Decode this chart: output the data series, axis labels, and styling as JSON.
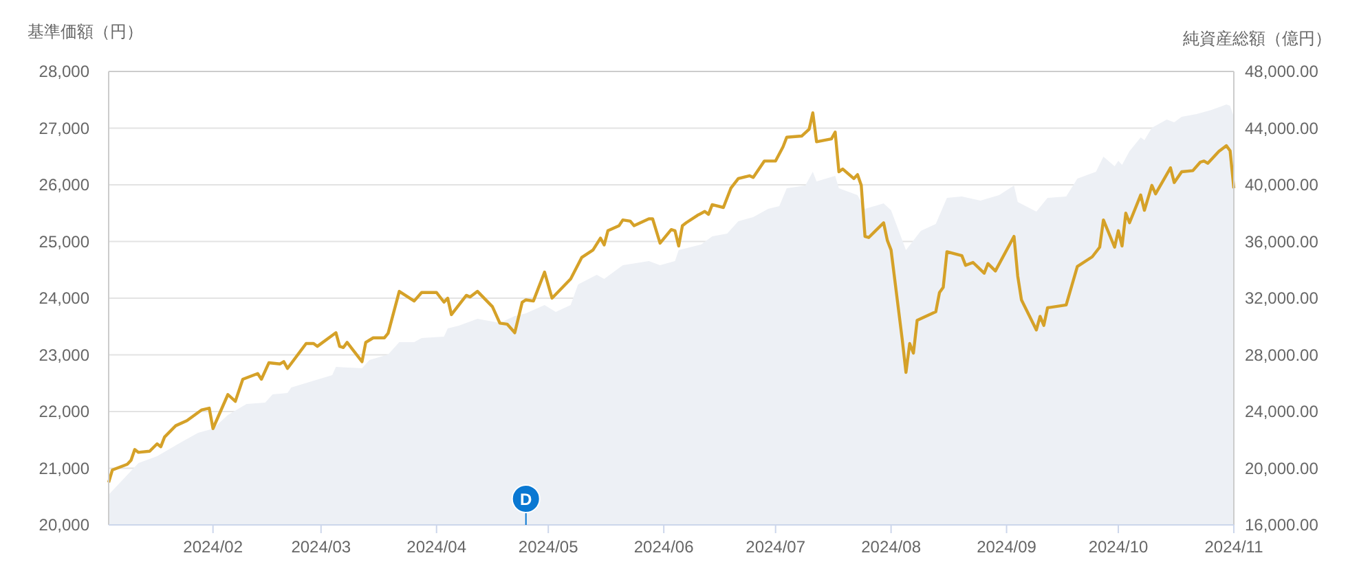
{
  "chart_data": {
    "type": "line",
    "ylabel": "基準価額（円）",
    "y2label": "純資産総額（億円）",
    "xlim": [
      "2024-01-04",
      "2024-11-01"
    ],
    "xticks": [
      {
        "value": "2024-02-01",
        "label": "2024/02"
      },
      {
        "value": "2024-03-01",
        "label": "2024/03"
      },
      {
        "value": "2024-04-01",
        "label": "2024/04"
      },
      {
        "value": "2024-05-01",
        "label": "2024/05"
      },
      {
        "value": "2024-06-01",
        "label": "2024/06"
      },
      {
        "value": "2024-07-01",
        "label": "2024/07"
      },
      {
        "value": "2024-08-01",
        "label": "2024/08"
      },
      {
        "value": "2024-09-01",
        "label": "2024/09"
      },
      {
        "value": "2024-10-01",
        "label": "2024/10"
      },
      {
        "value": "2024-11-01",
        "label": "2024/11"
      }
    ],
    "ylim": [
      20000,
      28000
    ],
    "yticks": [
      {
        "value": 20000,
        "label": "20,000"
      },
      {
        "value": 21000,
        "label": "21,000"
      },
      {
        "value": 22000,
        "label": "22,000"
      },
      {
        "value": 23000,
        "label": "23,000"
      },
      {
        "value": 24000,
        "label": "24,000"
      },
      {
        "value": 25000,
        "label": "25,000"
      },
      {
        "value": 26000,
        "label": "26,000"
      },
      {
        "value": 27000,
        "label": "27,000"
      },
      {
        "value": 28000,
        "label": "28,000"
      }
    ],
    "y2lim": [
      16000,
      48000
    ],
    "y2ticks": [
      {
        "value": 16000,
        "label": "16,000.00"
      },
      {
        "value": 20000,
        "label": "20,000.00"
      },
      {
        "value": 24000,
        "label": "24,000.00"
      },
      {
        "value": 28000,
        "label": "28,000.00"
      },
      {
        "value": 32000,
        "label": "32,000.00"
      },
      {
        "value": 36000,
        "label": "36,000.00"
      },
      {
        "value": 40000,
        "label": "40,000.00"
      },
      {
        "value": 44000,
        "label": "44,000.00"
      },
      {
        "value": 48000,
        "label": "48,000.00"
      }
    ],
    "grid": "y",
    "annotations": [
      {
        "text": "D",
        "x": "2024-04-25"
      }
    ],
    "series": [
      {
        "type": "area",
        "axis": "y2",
        "color": "#edf0f5",
        "x": [
          "2024-01-04",
          "2024-01-12",
          "2024-01-17",
          "2024-01-24",
          "2024-01-28",
          "2024-02-01",
          "2024-02-05",
          "2024-02-10",
          "2024-02-15",
          "2024-02-17",
          "2024-02-21",
          "2024-02-22",
          "2024-03-04",
          "2024-03-05",
          "2024-03-12",
          "2024-03-14",
          "2024-03-19",
          "2024-03-22",
          "2024-03-26",
          "2024-03-28",
          "2024-04-03",
          "2024-04-04",
          "2024-04-07",
          "2024-04-12",
          "2024-04-18",
          "2024-04-22",
          "2024-04-25",
          "2024-04-30",
          "2024-05-03",
          "2024-05-07",
          "2024-05-09",
          "2024-05-14",
          "2024-05-16",
          "2024-05-21",
          "2024-05-28",
          "2024-05-31",
          "2024-06-04",
          "2024-06-05",
          "2024-06-11",
          "2024-06-14",
          "2024-06-18",
          "2024-06-21",
          "2024-06-25",
          "2024-06-29",
          "2024-07-02",
          "2024-07-04",
          "2024-07-09",
          "2024-07-11",
          "2024-07-12",
          "2024-07-17",
          "2024-07-18",
          "2024-07-23",
          "2024-07-25",
          "2024-07-30",
          "2024-08-01",
          "2024-08-05",
          "2024-08-09",
          "2024-08-13",
          "2024-08-16",
          "2024-08-20",
          "2024-08-25",
          "2024-08-30",
          "2024-09-03",
          "2024-09-04",
          "2024-09-09",
          "2024-09-12",
          "2024-09-17",
          "2024-09-20",
          "2024-09-25",
          "2024-09-27",
          "2024-09-30",
          "2024-10-01",
          "2024-10-02",
          "2024-10-04",
          "2024-10-07",
          "2024-10-08",
          "2024-10-10",
          "2024-10-14",
          "2024-10-16",
          "2024-10-18",
          "2024-10-22",
          "2024-10-26",
          "2024-10-30",
          "2024-10-31",
          "2024-11-01"
        ],
        "values": [
          18130,
          20360,
          20850,
          21920,
          22500,
          22790,
          23760,
          24530,
          24630,
          25210,
          25310,
          25700,
          26570,
          27150,
          27050,
          27640,
          28020,
          28900,
          28900,
          29190,
          29280,
          29870,
          30060,
          30550,
          30260,
          30740,
          30930,
          31520,
          31030,
          31520,
          32970,
          33650,
          33360,
          34330,
          34620,
          34330,
          34620,
          35400,
          35780,
          36360,
          36560,
          37430,
          37720,
          38300,
          38500,
          39760,
          39950,
          40920,
          40240,
          40630,
          39760,
          39270,
          38300,
          38690,
          38210,
          35400,
          36750,
          37240,
          39080,
          39180,
          38880,
          39270,
          39950,
          38790,
          38110,
          39080,
          39180,
          40440,
          40920,
          41990,
          41310,
          41700,
          41410,
          42380,
          43350,
          43150,
          44020,
          44610,
          44410,
          44800,
          44990,
          45280,
          45670,
          45580,
          44800
        ]
      },
      {
        "color": "#d5a128",
        "x": [
          "2024-01-04",
          "2024-01-05",
          "2024-01-09",
          "2024-01-10",
          "2024-01-11",
          "2024-01-12",
          "2024-01-15",
          "2024-01-17",
          "2024-01-18",
          "2024-01-19",
          "2024-01-22",
          "2024-01-25",
          "2024-01-29",
          "2024-01-31",
          "2024-02-01",
          "2024-02-05",
          "2024-02-07",
          "2024-02-09",
          "2024-02-13",
          "2024-02-14",
          "2024-02-16",
          "2024-02-19",
          "2024-02-20",
          "2024-02-21",
          "2024-02-26",
          "2024-02-28",
          "2024-02-29",
          "2024-03-05",
          "2024-03-06",
          "2024-03-07",
          "2024-03-08",
          "2024-03-12",
          "2024-03-13",
          "2024-03-15",
          "2024-03-18",
          "2024-03-19",
          "2024-03-22",
          "2024-03-26",
          "2024-03-28",
          "2024-04-01",
          "2024-04-03",
          "2024-04-04",
          "2024-04-05",
          "2024-04-09",
          "2024-04-10",
          "2024-04-12",
          "2024-04-16",
          "2024-04-18",
          "2024-04-20",
          "2024-04-22",
          "2024-04-24",
          "2024-04-25",
          "2024-04-27",
          "2024-04-30",
          "2024-05-02",
          "2024-05-07",
          "2024-05-10",
          "2024-05-13",
          "2024-05-15",
          "2024-05-16",
          "2024-05-17",
          "2024-05-20",
          "2024-05-21",
          "2024-05-23",
          "2024-05-24",
          "2024-05-28",
          "2024-05-29",
          "2024-05-31",
          "2024-06-03",
          "2024-06-04",
          "2024-06-05",
          "2024-06-06",
          "2024-06-07",
          "2024-06-10",
          "2024-06-12",
          "2024-06-13",
          "2024-06-14",
          "2024-06-17",
          "2024-06-19",
          "2024-06-21",
          "2024-06-24",
          "2024-06-25",
          "2024-06-28",
          "2024-07-01",
          "2024-07-03",
          "2024-07-04",
          "2024-07-08",
          "2024-07-10",
          "2024-07-11",
          "2024-07-12",
          "2024-07-16",
          "2024-07-17",
          "2024-07-18",
          "2024-07-19",
          "2024-07-22",
          "2024-07-23",
          "2024-07-24",
          "2024-07-25",
          "2024-07-26",
          "2024-07-30",
          "2024-07-31",
          "2024-08-01",
          "2024-08-04",
          "2024-08-05",
          "2024-08-06",
          "2024-08-07",
          "2024-08-08",
          "2024-08-13",
          "2024-08-14",
          "2024-08-15",
          "2024-08-16",
          "2024-08-20",
          "2024-08-21",
          "2024-08-23",
          "2024-08-26",
          "2024-08-27",
          "2024-08-29",
          "2024-09-03",
          "2024-09-04",
          "2024-09-05",
          "2024-09-09",
          "2024-09-10",
          "2024-09-11",
          "2024-09-12",
          "2024-09-17",
          "2024-09-20",
          "2024-09-24",
          "2024-09-26",
          "2024-09-27",
          "2024-09-30",
          "2024-10-01",
          "2024-10-02",
          "2024-10-03",
          "2024-10-04",
          "2024-10-07",
          "2024-10-08",
          "2024-10-10",
          "2024-10-11",
          "2024-10-15",
          "2024-10-16",
          "2024-10-18",
          "2024-10-21",
          "2024-10-23",
          "2024-10-24",
          "2024-10-25",
          "2024-10-28",
          "2024-10-30",
          "2024-10-31",
          "2024-11-01"
        ],
        "values": [
          20750,
          20970,
          21070,
          21140,
          21330,
          21280,
          21300,
          21430,
          21380,
          21550,
          21750,
          21840,
          22030,
          22060,
          21700,
          22300,
          22180,
          22570,
          22670,
          22570,
          22860,
          22840,
          22880,
          22760,
          23200,
          23200,
          23150,
          23390,
          23150,
          23130,
          23220,
          22880,
          23220,
          23300,
          23300,
          23380,
          24120,
          23950,
          24100,
          24100,
          23930,
          24000,
          23710,
          24050,
          24020,
          24120,
          23850,
          23560,
          23540,
          23390,
          23930,
          23970,
          23950,
          24460,
          24000,
          24340,
          24720,
          24850,
          25060,
          24940,
          25190,
          25280,
          25380,
          25360,
          25280,
          25400,
          25400,
          24970,
          25210,
          25190,
          24920,
          25280,
          25330,
          25460,
          25530,
          25480,
          25650,
          25600,
          25940,
          26110,
          26160,
          26130,
          26420,
          26420,
          26670,
          26840,
          26860,
          26980,
          27270,
          26760,
          26810,
          26930,
          26230,
          26280,
          26110,
          26180,
          25990,
          25090,
          25070,
          25330,
          25020,
          24850,
          23270,
          22690,
          23200,
          23030,
          23610,
          23760,
          24100,
          24190,
          24820,
          24750,
          24580,
          24630,
          24440,
          24610,
          24480,
          25090,
          24390,
          23970,
          23440,
          23680,
          23520,
          23830,
          23880,
          24560,
          24730,
          24900,
          25380,
          24900,
          25190,
          24920,
          25500,
          25330,
          25820,
          25550,
          25990,
          25840,
          26300,
          26040,
          26230,
          26250,
          26400,
          26420,
          26380,
          26590,
          26690,
          26600,
          25940
        ]
      }
    ]
  }
}
